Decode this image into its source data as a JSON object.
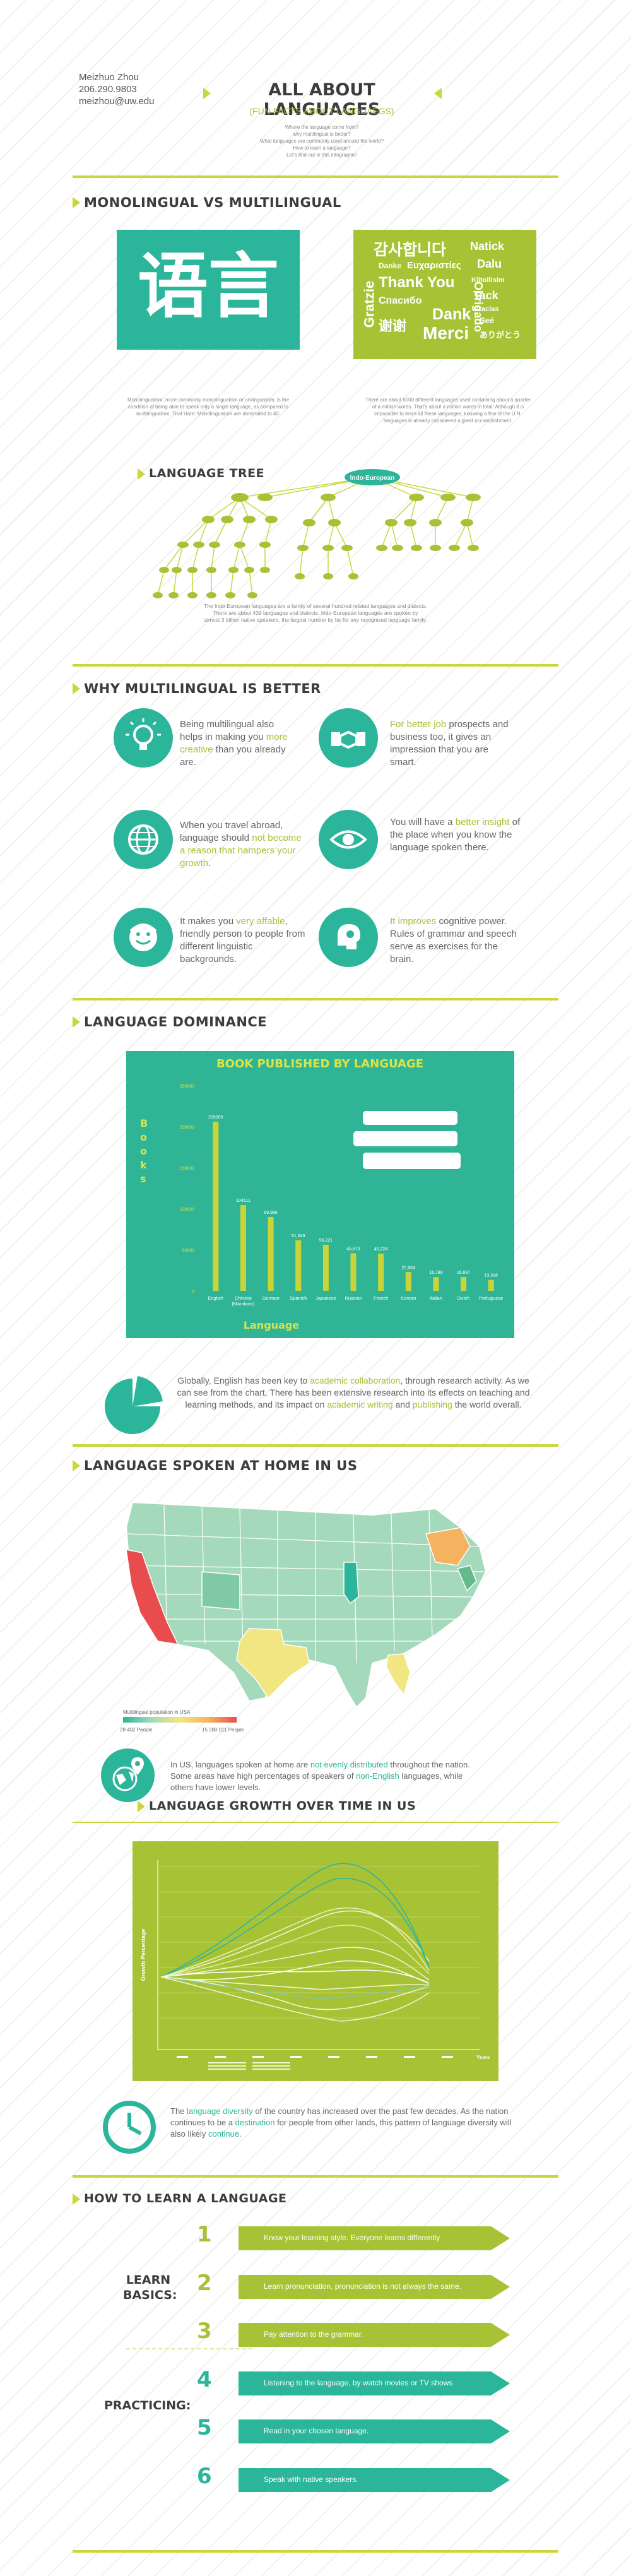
{
  "header": {
    "name": "Meizhuo Zhou",
    "phone": "206.290.9803",
    "email": "meizhou@uw.edu",
    "title": "ALL ABOUT LANGUAGES",
    "subtitle": "(FUN FACTS ABOUT LANGUAEGS)",
    "intro_lines": [
      "Where the language come from?",
      "why multilingual is better?",
      "What languages are commonly used around the world?",
      "How to learn a language?",
      "Let's find out in this infographic!"
    ]
  },
  "section1": {
    "title": "MONOLINGUAL VS MULTILINGUAL",
    "left_glyphs": "语言",
    "left_caption": "Monolingualism, more commonly monolingualism or unilingualism, is the condition of being able to speak only a single language, as compared to multilingualism. That Hare: Monolingualism are dominated to 40.",
    "right_words": [
      "감사합니다",
      "Natick",
      "Danke",
      "Ευχαριστίες",
      "Dalu",
      "Thank You",
      "Kiitollisim",
      "Спасибо",
      "Tack",
      "Gratzie",
      "Dank",
      "Gracias",
      "谢谢",
      "Merci",
      "Seé",
      "ありがとう",
      "Obrigado"
    ],
    "right_caption": "There are about 6000 different languages used containing about a quarter of a million words. That's about a million words in total! Although it is impossible to learn all these languages, knowing a few of the U.N. languages is already considered a great accomplishment."
  },
  "tree": {
    "title": "LANGUAGE TREE",
    "root": "Indo-European",
    "caption_lines": [
      "The Indo-European languages are a family of several hundred related languages and dialects.",
      "There are about 439 languages and dialects. Indo-European languages are spoken by",
      "almost 3 billion native speakers, the largest number by far for any recognised language family."
    ],
    "hl_count": "439",
    "hl_billion": "3 billion",
    "hl_largest": "largest number"
  },
  "why": {
    "title": "WHY MULTILINGUAL IS BETTER",
    "items": [
      {
        "icon": "lightbulb-icon",
        "pre": "Being multilingual also helps in making you ",
        "hl": "more creative",
        "post": " than you already are."
      },
      {
        "icon": "handshake-icon",
        "pre": "",
        "hl": "For better job",
        "post": " prospects and business too, it gives an impression that you are smart."
      },
      {
        "icon": "globe-icon",
        "pre": "When you travel abroad, language should ",
        "hl": "not become a reason that hampers your growth",
        "post": "."
      },
      {
        "icon": "eye-icon",
        "pre": "You will have a ",
        "hl": "better insight",
        "post": " of the place when you know the language spoken there."
      },
      {
        "icon": "smiley-icon",
        "pre": "It makes you ",
        "hl": "very affable",
        "post": ", friendly person to people from different linguistic backgrounds."
      },
      {
        "icon": "brain-icon",
        "pre": "",
        "hl": "It improves",
        "post": " cognitive power. Rules of grammar and speech serve as exercises for the brain."
      }
    ]
  },
  "dominance": {
    "title": "LANGUAGE DOMINANCE",
    "text_pre": "Globally, English has been key to ",
    "text_hl1": "academic collaboration",
    "text_mid": ", through research activity. As we can see from the chart, There has been extensive research into its effects on teaching and learning methods, and its impact on ",
    "text_hl2": "academic writing",
    "text_and": " and ",
    "text_hl3": "publishing",
    "text_post": " the world overall."
  },
  "chart_data": {
    "type": "bar",
    "title": "BOOK PUBLISHED BY LANGUAGE",
    "xlabel": "Language",
    "ylabel": "Books",
    "ylim": [
      0,
      250000
    ],
    "yticks": [
      "0",
      "50000",
      "100000",
      "150000",
      "200000",
      "250000"
    ],
    "categories": [
      "English",
      "Chinese (Mandarin)",
      "German",
      "Spanish",
      "Japanese",
      "Russian",
      "French",
      "Korean",
      "Italian",
      "Dutch",
      "Portuguese"
    ],
    "values": [
      206000,
      104511,
      89986,
      61649,
      56221,
      45673,
      45224,
      22884,
      16788,
      16887,
      13318
    ],
    "value_labels": [
      "206000",
      "104511",
      "89,986",
      "61,649",
      "56,221",
      "45,673",
      "45,224",
      "22,884",
      "16,788",
      "16,887",
      "13,318"
    ],
    "colors": {
      "bg": "#2fb596",
      "bars": "#c8d43a"
    }
  },
  "home": {
    "title": "LANGUAGE SPOKEN AT HOME IN US",
    "legend_title": "Multilingual population in USA",
    "legend_min": "28 402 People",
    "legend_max": "15 280 011 People",
    "text_pre": "In US, languages spoken at home are ",
    "text_hl1": "not evenly distributed",
    "text_mid": " throughout the nation. Some areas have high percentages of speakers of ",
    "text_hl2": "non-English",
    "text_post": " languages, while others have lower levels."
  },
  "growth": {
    "title": "LANGUAGE GROWTH OVER TIME IN US",
    "ylabel": "Growth Percentage",
    "xlabel": "Years",
    "text_pre": "The ",
    "text_hl1": "language diversity",
    "text_mid": " of the country has increased over the past few decades. As the nation continues to be a ",
    "text_hl2": "destination",
    "text_mid2": " for people from other lands, this pattern of language diversity will also likely ",
    "text_hl3": "continue",
    "text_post": "."
  },
  "learn": {
    "title": "HOW TO LEARN A LANGUAGE",
    "basics_label": "LEARN BASICS:",
    "practicing_label": "PRACTICING:",
    "steps": [
      {
        "num": "1",
        "text": "Know your learning style. Everyone learns differently"
      },
      {
        "num": "2",
        "text": "Learn pronunciation, pronunciation is not always the same."
      },
      {
        "num": "3",
        "text": "Pay attention to the grammar."
      },
      {
        "num": "4",
        "text": "Listening to the language, by watch movies or TV shows"
      },
      {
        "num": "5",
        "text": "Read in your chosen language."
      },
      {
        "num": "6",
        "text": "Speak with native speakers."
      }
    ]
  },
  "colors": {
    "lime": "#c9d73a",
    "teal": "#2bb59a",
    "green": "#a8c236"
  }
}
